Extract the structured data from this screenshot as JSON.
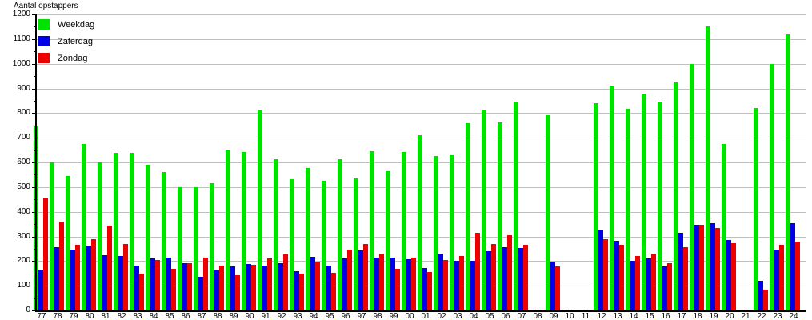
{
  "title": "Aantal opstappers",
  "chart_data": {
    "type": "bar",
    "title": "Aantal opstappers",
    "ylabel": "Aantal opstappers",
    "xlabel": "",
    "categories": [
      "77",
      "78",
      "79",
      "80",
      "81",
      "82",
      "83",
      "84",
      "85",
      "86",
      "87",
      "88",
      "89",
      "90",
      "91",
      "92",
      "93",
      "94",
      "95",
      "96",
      "97",
      "98",
      "99",
      "00",
      "01",
      "02",
      "03",
      "04",
      "05",
      "06",
      "07",
      "08",
      "09",
      "10",
      "11",
      "12",
      "13",
      "14",
      "15",
      "16",
      "17",
      "18",
      "19",
      "20",
      "21",
      "22",
      "23",
      "24"
    ],
    "series": [
      {
        "name": "Weekdag",
        "color": "#00e100",
        "values": [
          745,
          600,
          545,
          675,
          600,
          640,
          640,
          590,
          560,
          500,
          500,
          515,
          650,
          642,
          815,
          613,
          533,
          577,
          527,
          613,
          536,
          644,
          563,
          642,
          709,
          626,
          629,
          759,
          815,
          763,
          848,
          null,
          791,
          null,
          null,
          841,
          907,
          816,
          875,
          848,
          925,
          1000,
          1150,
          676,
          null,
          820,
          1000,
          1119
        ]
      },
      {
        "name": "Zaterdag",
        "color": "#0000e8",
        "values": [
          165,
          255,
          245,
          263,
          225,
          220,
          180,
          212,
          215,
          190,
          136,
          161,
          178,
          187,
          180,
          190,
          160,
          217,
          182,
          212,
          242,
          215,
          215,
          208,
          171,
          229,
          200,
          201,
          241,
          256,
          252,
          null,
          196,
          null,
          null,
          323,
          282,
          202,
          210,
          177,
          315,
          348,
          352,
          284,
          null,
          120,
          245,
          355
        ]
      },
      {
        "name": "Zondag",
        "color": "#ee0000",
        "values": [
          455,
          360,
          265,
          288,
          345,
          268,
          150,
          205,
          170,
          192,
          215,
          183,
          143,
          185,
          212,
          227,
          148,
          197,
          151,
          248,
          270,
          229,
          169,
          215,
          156,
          204,
          221,
          316,
          270,
          306,
          266,
          null,
          177,
          null,
          null,
          289,
          267,
          219,
          230,
          191,
          255,
          348,
          335,
          271,
          null,
          83,
          267,
          278
        ]
      }
    ],
    "ylim": [
      0,
      1200
    ],
    "ytick_interval": 100,
    "yminortick_interval": 50,
    "yticks": [
      0,
      100,
      200,
      300,
      400,
      500,
      600,
      700,
      800,
      900,
      1000,
      1100,
      1200
    ],
    "grid": true,
    "gridline_color": "#c0c0c0",
    "axis_color": "#000000",
    "background_color": "#ffffff",
    "legend_position": "top-left"
  }
}
